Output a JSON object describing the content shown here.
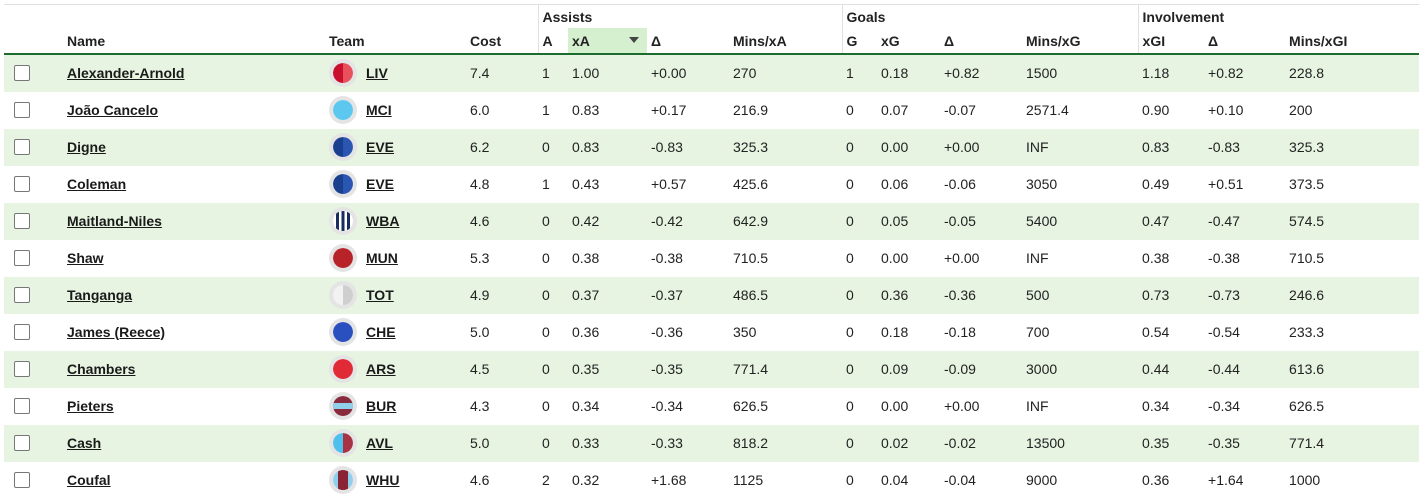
{
  "groups": {
    "assists": "Assists",
    "goals": "Goals",
    "involvement": "Involvement"
  },
  "columns": {
    "name": "Name",
    "team": "Team",
    "cost": "Cost",
    "a": "A",
    "xa": "xA",
    "delta_a": "Δ",
    "mins_xa": "Mins/xA",
    "g": "G",
    "xg": "xG",
    "delta_g": "Δ",
    "mins_xg": "Mins/xG",
    "xgi": "xGI",
    "delta_gi": "Δ",
    "mins_xgi": "Mins/xGI"
  },
  "sort": {
    "column": "xA",
    "direction": "desc"
  },
  "rows": [
    {
      "name": "Alexander-Arnold",
      "team": "LIV",
      "kit": {
        "type": "half",
        "left": "#c8102e",
        "right": "#e8505b"
      },
      "cost": "7.4",
      "a": "1",
      "xa": "1.00",
      "delta_a": "+0.00",
      "mins_xa": "270",
      "g": "1",
      "xg": "0.18",
      "delta_g": "+0.82",
      "mins_xg": "1500",
      "xgi": "1.18",
      "delta_gi": "+0.82",
      "mins_xgi": "228.8"
    },
    {
      "name": "João Cancelo",
      "team": "MCI",
      "kit": {
        "type": "solid",
        "left": "#5cc8ef",
        "right": "#5cc8ef"
      },
      "cost": "6.0",
      "a": "1",
      "xa": "0.83",
      "delta_a": "+0.17",
      "mins_xa": "216.9",
      "g": "0",
      "xg": "0.07",
      "delta_g": "-0.07",
      "mins_xg": "2571.4",
      "xgi": "0.90",
      "delta_gi": "+0.10",
      "mins_xgi": "200"
    },
    {
      "name": "Digne",
      "team": "EVE",
      "kit": {
        "type": "half",
        "left": "#1b3f8f",
        "right": "#2a55b0"
      },
      "cost": "6.2",
      "a": "0",
      "xa": "0.83",
      "delta_a": "-0.83",
      "mins_xa": "325.3",
      "g": "0",
      "xg": "0.00",
      "delta_g": "+0.00",
      "mins_xg": "INF",
      "xgi": "0.83",
      "delta_gi": "-0.83",
      "mins_xgi": "325.3"
    },
    {
      "name": "Coleman",
      "team": "EVE",
      "kit": {
        "type": "half",
        "left": "#1b3f8f",
        "right": "#2a55b0"
      },
      "cost": "4.8",
      "a": "1",
      "xa": "0.43",
      "delta_a": "+0.57",
      "mins_xa": "425.6",
      "g": "0",
      "xg": "0.06",
      "delta_g": "-0.06",
      "mins_xg": "3050",
      "xgi": "0.49",
      "delta_gi": "+0.51",
      "mins_xgi": "373.5"
    },
    {
      "name": "Maitland-Niles",
      "team": "WBA",
      "kit": {
        "type": "stripes",
        "left": "#1a2b5e",
        "right": "#ffffff"
      },
      "cost": "4.6",
      "a": "0",
      "xa": "0.42",
      "delta_a": "-0.42",
      "mins_xa": "642.9",
      "g": "0",
      "xg": "0.05",
      "delta_g": "-0.05",
      "mins_xg": "5400",
      "xgi": "0.47",
      "delta_gi": "-0.47",
      "mins_xgi": "574.5"
    },
    {
      "name": "Shaw",
      "team": "MUN",
      "kit": {
        "type": "solid",
        "left": "#b8232a",
        "right": "#b8232a"
      },
      "cost": "5.3",
      "a": "0",
      "xa": "0.38",
      "delta_a": "-0.38",
      "mins_xa": "710.5",
      "g": "0",
      "xg": "0.00",
      "delta_g": "+0.00",
      "mins_xg": "INF",
      "xgi": "0.38",
      "delta_gi": "-0.38",
      "mins_xgi": "710.5"
    },
    {
      "name": "Tanganga",
      "team": "TOT",
      "kit": {
        "type": "half",
        "left": "#f2f2f2",
        "right": "#cfcfcf"
      },
      "cost": "4.9",
      "a": "0",
      "xa": "0.37",
      "delta_a": "-0.37",
      "mins_xa": "486.5",
      "g": "0",
      "xg": "0.36",
      "delta_g": "-0.36",
      "mins_xg": "500",
      "xgi": "0.73",
      "delta_gi": "-0.73",
      "mins_xgi": "246.6"
    },
    {
      "name": "James (Reece)",
      "team": "CHE",
      "kit": {
        "type": "solid",
        "left": "#2a50c0",
        "right": "#2a50c0"
      },
      "cost": "5.0",
      "a": "0",
      "xa": "0.36",
      "delta_a": "-0.36",
      "mins_xa": "350",
      "g": "0",
      "xg": "0.18",
      "delta_g": "-0.18",
      "mins_xg": "700",
      "xgi": "0.54",
      "delta_gi": "-0.54",
      "mins_xgi": "233.3"
    },
    {
      "name": "Chambers",
      "team": "ARS",
      "kit": {
        "type": "solid",
        "left": "#e02a35",
        "right": "#e02a35"
      },
      "cost": "4.5",
      "a": "0",
      "xa": "0.35",
      "delta_a": "-0.35",
      "mins_xa": "771.4",
      "g": "0",
      "xg": "0.09",
      "delta_g": "-0.09",
      "mins_xg": "3000",
      "xgi": "0.44",
      "delta_gi": "-0.44",
      "mins_xgi": "613.6"
    },
    {
      "name": "Pieters",
      "team": "BUR",
      "kit": {
        "type": "band",
        "left": "#8a2a3e",
        "right": "#8fd0ea"
      },
      "cost": "4.3",
      "a": "0",
      "xa": "0.34",
      "delta_a": "-0.34",
      "mins_xa": "626.5",
      "g": "0",
      "xg": "0.00",
      "delta_g": "+0.00",
      "mins_xg": "INF",
      "xgi": "0.34",
      "delta_gi": "-0.34",
      "mins_xgi": "626.5"
    },
    {
      "name": "Cash",
      "team": "AVL",
      "kit": {
        "type": "half",
        "left": "#4fc0ec",
        "right": "#a83244"
      },
      "cost": "5.0",
      "a": "0",
      "xa": "0.33",
      "delta_a": "-0.33",
      "mins_xa": "818.2",
      "g": "0",
      "xg": "0.02",
      "delta_g": "-0.02",
      "mins_xg": "13500",
      "xgi": "0.35",
      "delta_gi": "-0.35",
      "mins_xgi": "771.4"
    },
    {
      "name": "Coufal",
      "team": "WHU",
      "kit": {
        "type": "sleeves",
        "left": "#8a2435",
        "right": "#8ed0ee"
      },
      "cost": "4.6",
      "a": "2",
      "xa": "0.32",
      "delta_a": "+1.68",
      "mins_xa": "1125",
      "g": "0",
      "xg": "0.04",
      "delta_g": "-0.04",
      "mins_xg": "9000",
      "xgi": "0.36",
      "delta_gi": "+1.64",
      "mins_xgi": "1000"
    }
  ]
}
